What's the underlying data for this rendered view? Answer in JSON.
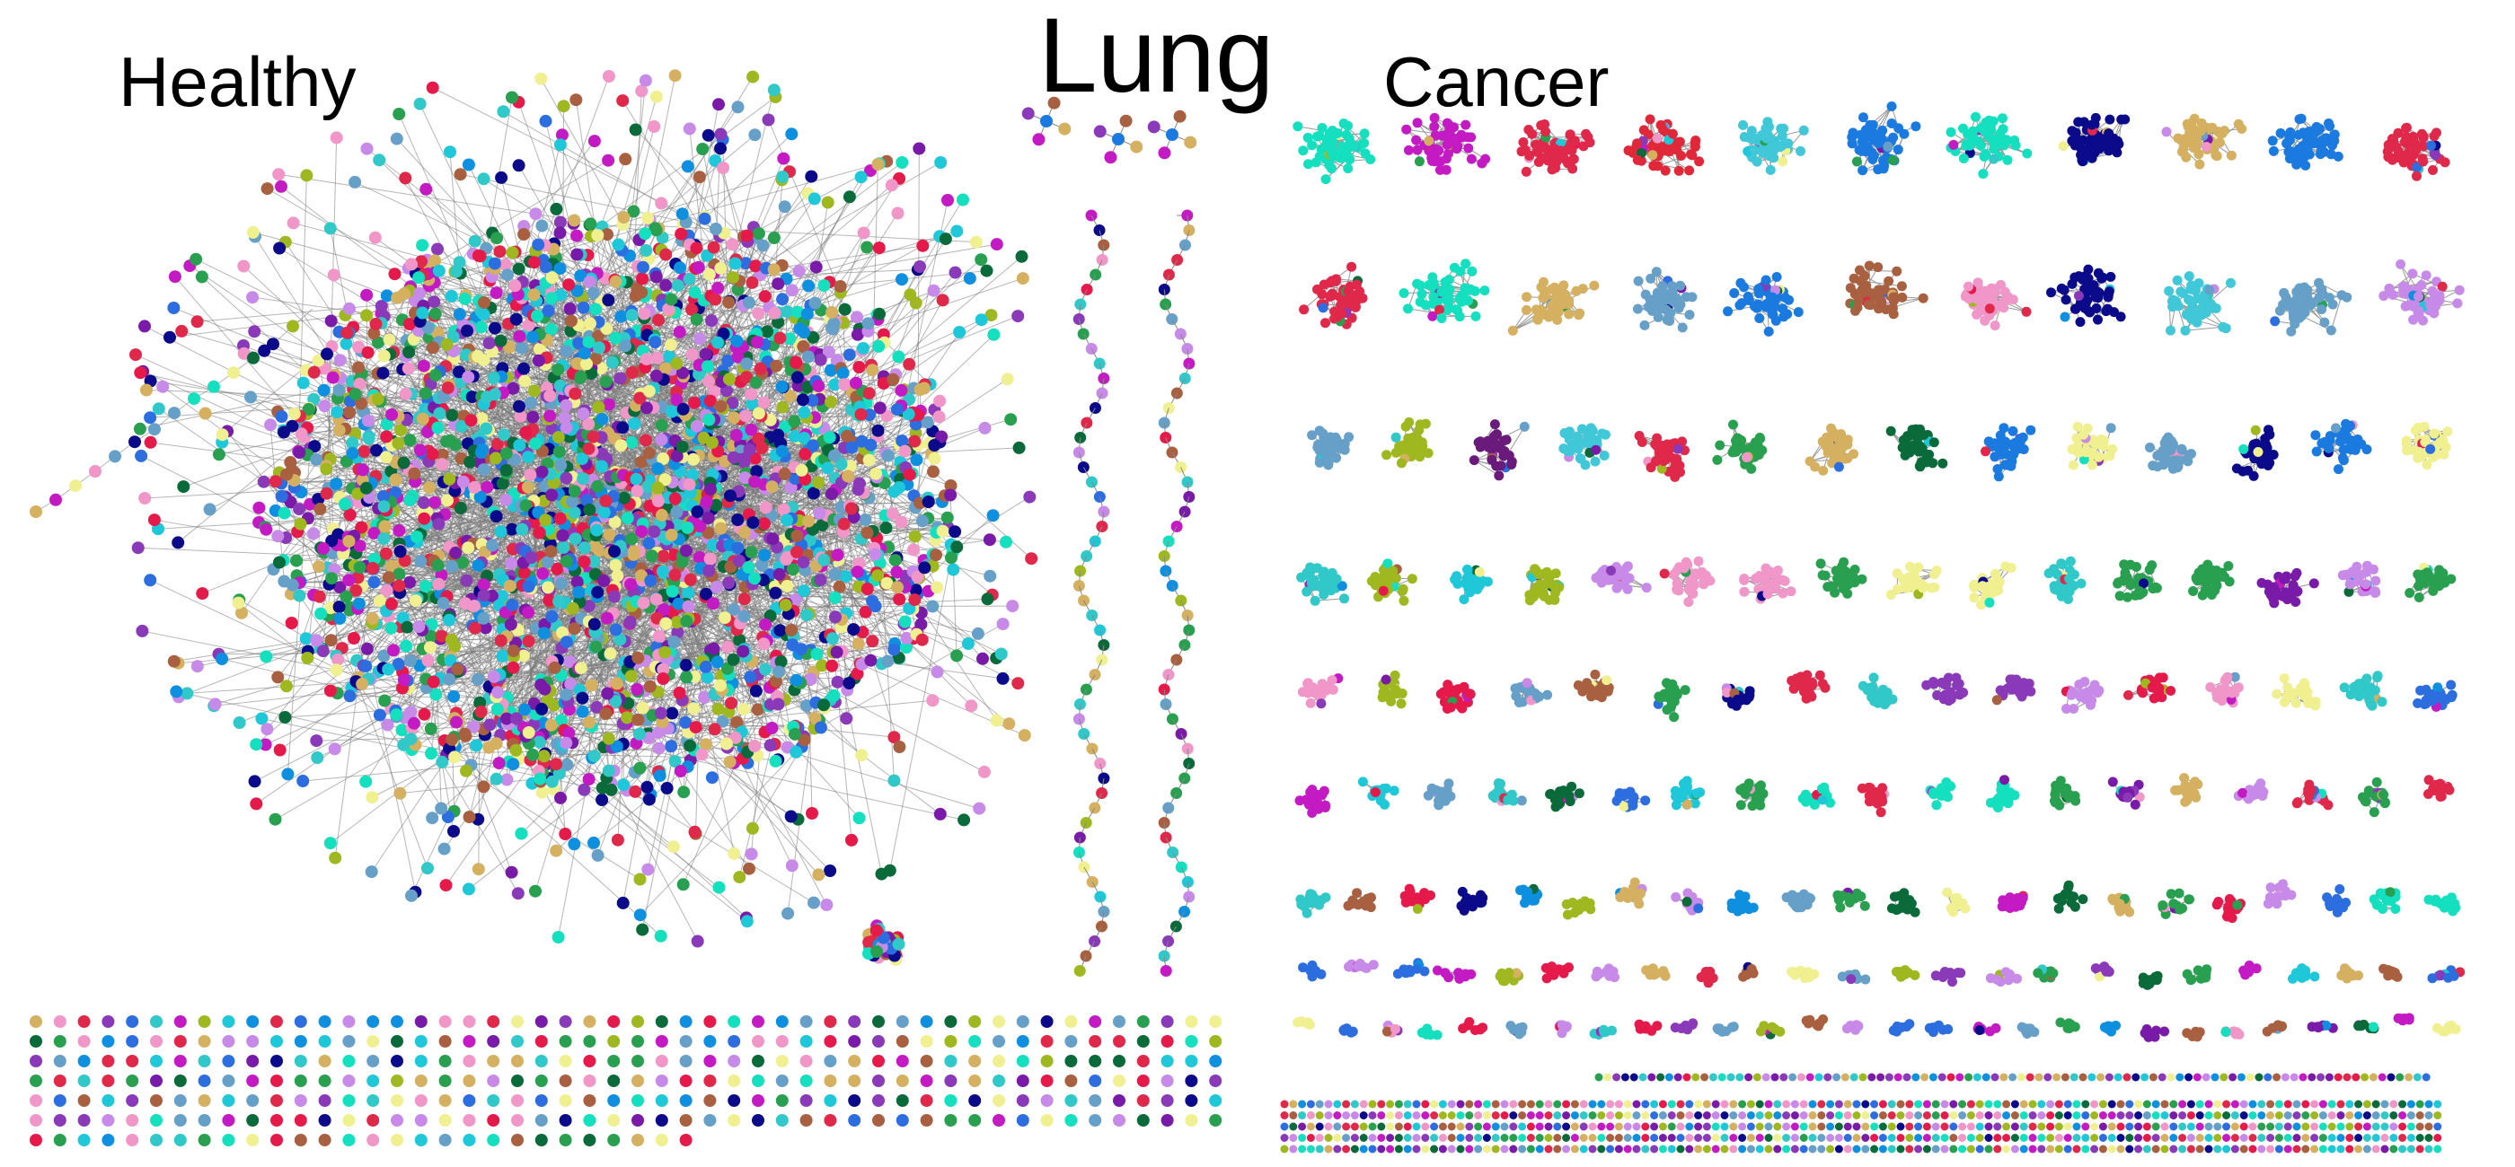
{
  "titles": {
    "main": "Lung",
    "left": "Healthy",
    "right": "Cancer"
  },
  "palette": [
    "#e6194b",
    "#0f8fe0",
    "#1ec8d8",
    "#14e0c0",
    "#7a1aa8",
    "#d4b060",
    "#0a0a8a",
    "#28a050",
    "#c41ac4",
    "#f0f090",
    "#2c6ee0",
    "#8a3ab8",
    "#c88ae8",
    "#a0b820",
    "#a86040",
    "#66a0c8",
    "#f096c8",
    "#0a6a3a",
    "#e0284a",
    "#30c8c8"
  ],
  "cancer_cluster_colors": [
    "#14e0c0",
    "#c41ac4",
    "#e0284a",
    "#e0283a",
    "#40c8d8",
    "#1a7ae0",
    "#14e0c0",
    "#0a0a8a",
    "#d4b060",
    "#1a7ae0",
    "#e0284a",
    "#e0284a",
    "#14e0c0",
    "#d4b060",
    "#66a0c8",
    "#1a7ae0",
    "#a86040",
    "#f096c8",
    "#0a0a8a",
    "#40c8d8",
    "#66a0c8",
    "#c88ae8",
    "#66a0c8",
    "#a0b820",
    "#6a1a7a",
    "#40c8d8",
    "#e0284a",
    "#28a050",
    "#d4b060",
    "#0a6a3a",
    "#1a7ae0",
    "#f0f090",
    "#66a0c8",
    "#0a0a8a",
    "#1a7ae0"
  ]
}
